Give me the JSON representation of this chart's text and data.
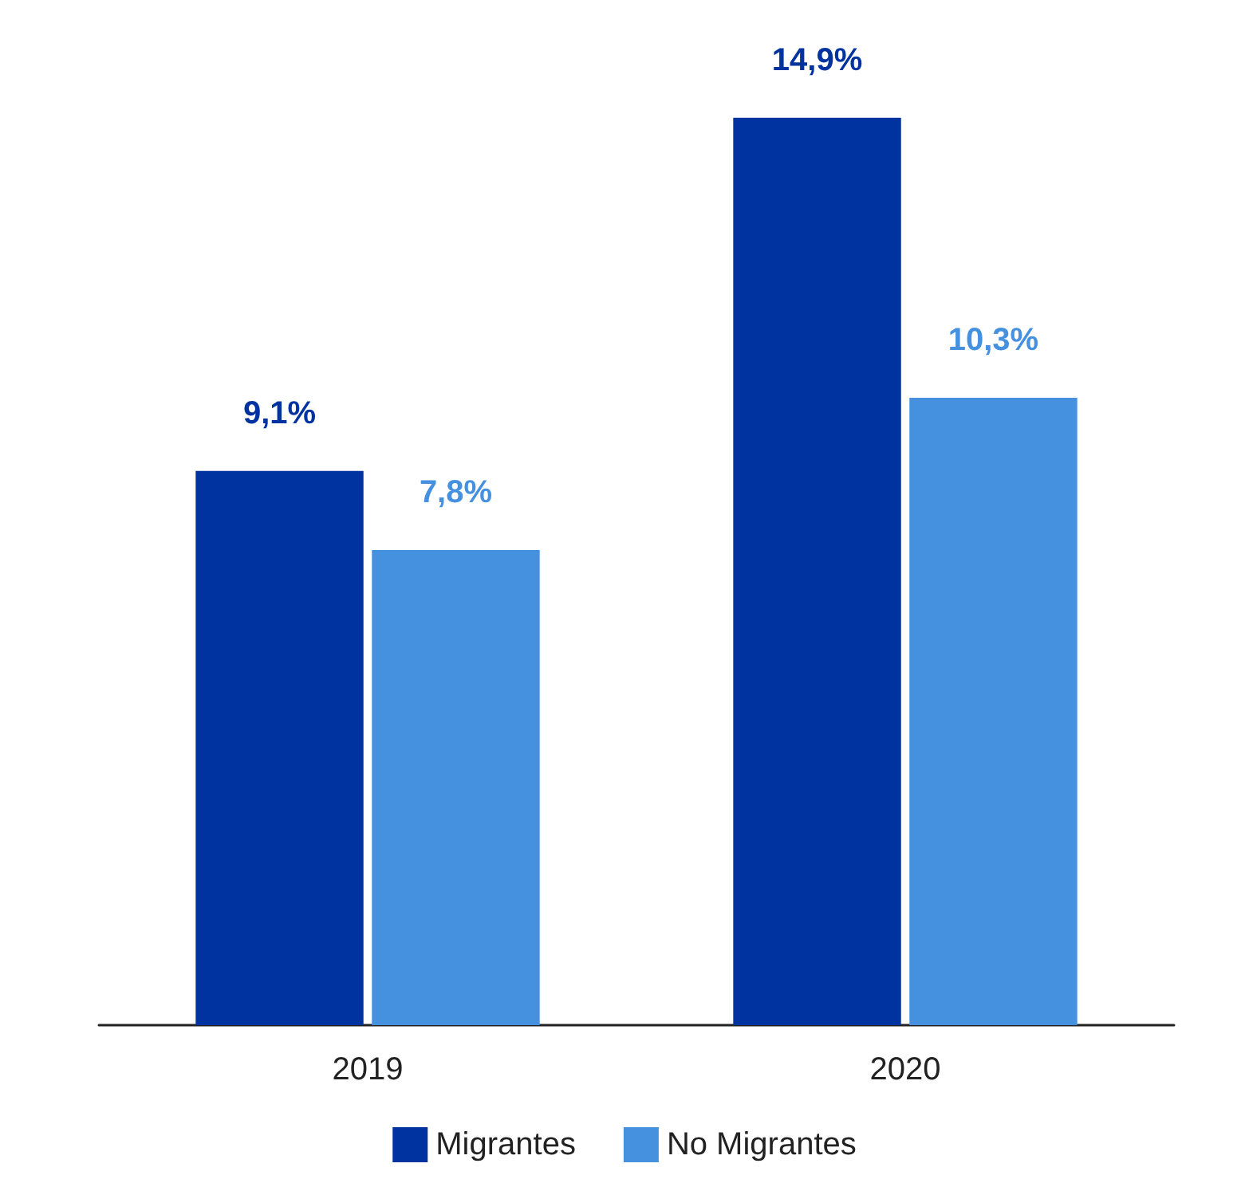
{
  "chart_data": {
    "type": "bar",
    "categories": [
      "2019",
      "2020"
    ],
    "series": [
      {
        "name": "Migrantes",
        "color": "#0033a0",
        "values": [
          9.1,
          14.9
        ],
        "value_labels": [
          "9,1%",
          "14,9%"
        ]
      },
      {
        "name": "No Migrantes",
        "color": "#4591e0",
        "values": [
          7.8,
          10.3
        ],
        "value_labels": [
          "7,8%",
          "10,3%"
        ]
      }
    ],
    "legend": "bottom",
    "tick_labels": "x"
  }
}
